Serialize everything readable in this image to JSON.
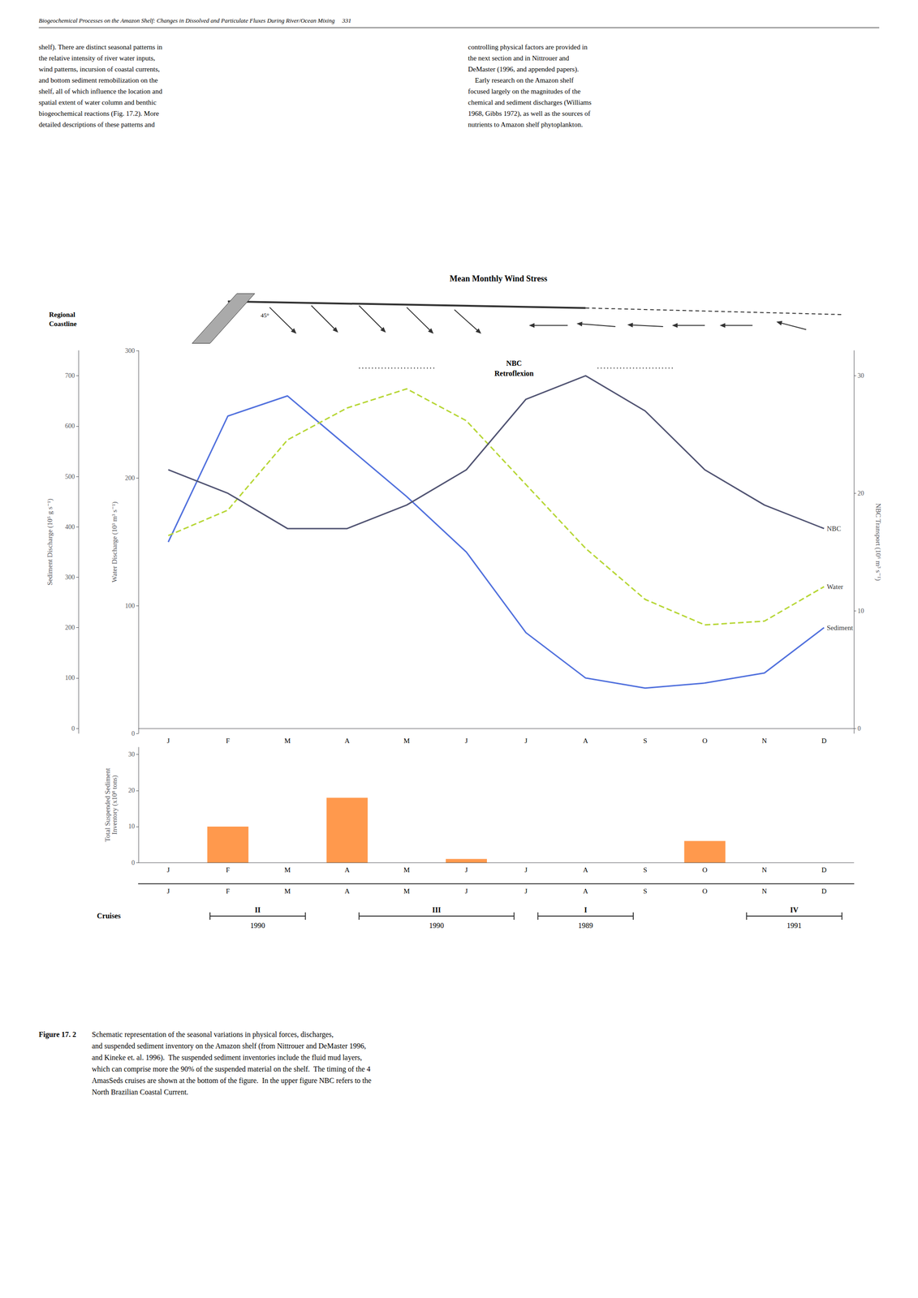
{
  "header": "Biogeochemical Processes on the Amazon Shelf: Changes in Dissolved and Particulate Fluxes During River/Ocean Mixing     331",
  "body_text": [
    "shelf). There are distinct seasonal patterns in\nthe relative intensity of river water inputs,\nwind patterns, incursion of coastal currents,\nand bottom sediment remobilization on the\nshelf, all of which influence the location and\nspatial extent of water column and benthic\nbiogeochemical reactions (Fig. 17.2). More\ndetailed descriptions of these patterns and",
    "controlling physical factors are provided in\nthe next section and in Nittrouer and\nDeMaster (1996, and appended papers).\n    Early research on the Amazon shelf\nfocused largely on the magnitudes of the\nchemical and sediment discharges (Williams\n1968, Gibbs 1972), as well as the sources of\nnutrients to Amazon shelf phytoplankton."
  ],
  "caption_label": "Figure 17. 2",
  "caption": "Schematic representation of the seasonal variations in physical forces, discharges,\nand suspended sediment inventory on the Amazon shelf (from Nittrouer and DeMaster 1996,\nand Kineke et. al. 1996).  The suspended sediment inventories include the fluid mud layers,\nwhich can comprise more the 90% of the suspended material on the shelf.  The timing of the 4\nAmasSeds cruises are shown at the bottom of the figure.  In the upper figure NBC refers to the\nNorth Brazilian Coastal Current.",
  "chart_data": [
    {
      "type": "line",
      "title": "Mean Monthly Wind Stress",
      "annotations": [
        "Regional\nCoastline",
        "45°",
        "NBC\nRetroflexion"
      ],
      "categories": [
        "J",
        "F",
        "M",
        "A",
        "M",
        "J",
        "J",
        "A",
        "S",
        "O",
        "N",
        "D"
      ],
      "ylabel": "Sediment Discharge (10⁵ g s⁻¹)",
      "ylim": [
        -10,
        750
      ],
      "yticks": [
        0,
        100,
        200,
        300,
        400,
        500,
        600,
        700
      ],
      "y2label": "NBC Transport (10⁶ m³ s⁻¹)",
      "y2lim": [
        -0.42857142857142855,
        32.142857142857146
      ],
      "y2ticks": [
        0,
        10,
        20,
        30
      ],
      "y3label": "Water Discharge (10³ m³ s⁻¹)",
      "y3lim": [
        0,
        300
      ],
      "y3ticks": [
        0,
        100,
        200,
        300
      ],
      "grid": false,
      "series": [
        {
          "name": "Sediment",
          "values": [
            370,
            620,
            660,
            560,
            460,
            350,
            190,
            100,
            80,
            90,
            110,
            200
          ],
          "line_style": "solid"
        },
        {
          "name": "Water",
          "axis": "y3",
          "values": [
            155,
            175,
            230,
            255,
            270,
            245,
            195,
            145,
            105,
            85,
            88,
            115
          ],
          "line_style": "dashed"
        },
        {
          "name": "NBC",
          "axis": "y2",
          "values": [
            22,
            20,
            17,
            17,
            19,
            22,
            28,
            30,
            27,
            22,
            19,
            17
          ],
          "line_style": "solid"
        }
      ]
    },
    {
      "type": "bar",
      "ylabel": "Total Suspended Sediment\nInventory (x10⁸ tons)",
      "categories": [
        "J",
        "F",
        "M",
        "A",
        "M",
        "J",
        "J",
        "A",
        "S",
        "O",
        "N",
        "D"
      ],
      "values": [
        0,
        10,
        0,
        18,
        0,
        1,
        0,
        0,
        0,
        6,
        0,
        0
      ],
      "ylim": [
        0,
        32
      ],
      "yticks": [
        0,
        10,
        20,
        30
      ],
      "grid": false,
      "cruises_title": "Cruises",
      "cruises": [
        {
          "label": "II",
          "year": "1990",
          "x_start": 0.7,
          "x_end": 2.3,
          "x_center": 1.5
        },
        {
          "label": "III",
          "year": "1990",
          "x_start": 3.2,
          "x_end": 5.8,
          "x_center": 4.5
        },
        {
          "label": "I",
          "year": "1989",
          "x_start": 6.2,
          "x_end": 7.8,
          "x_center": 7.0
        },
        {
          "label": "IV",
          "year": "1991",
          "x_start": 9.7,
          "x_end": 11.3,
          "x_center": 10.5
        }
      ]
    }
  ]
}
